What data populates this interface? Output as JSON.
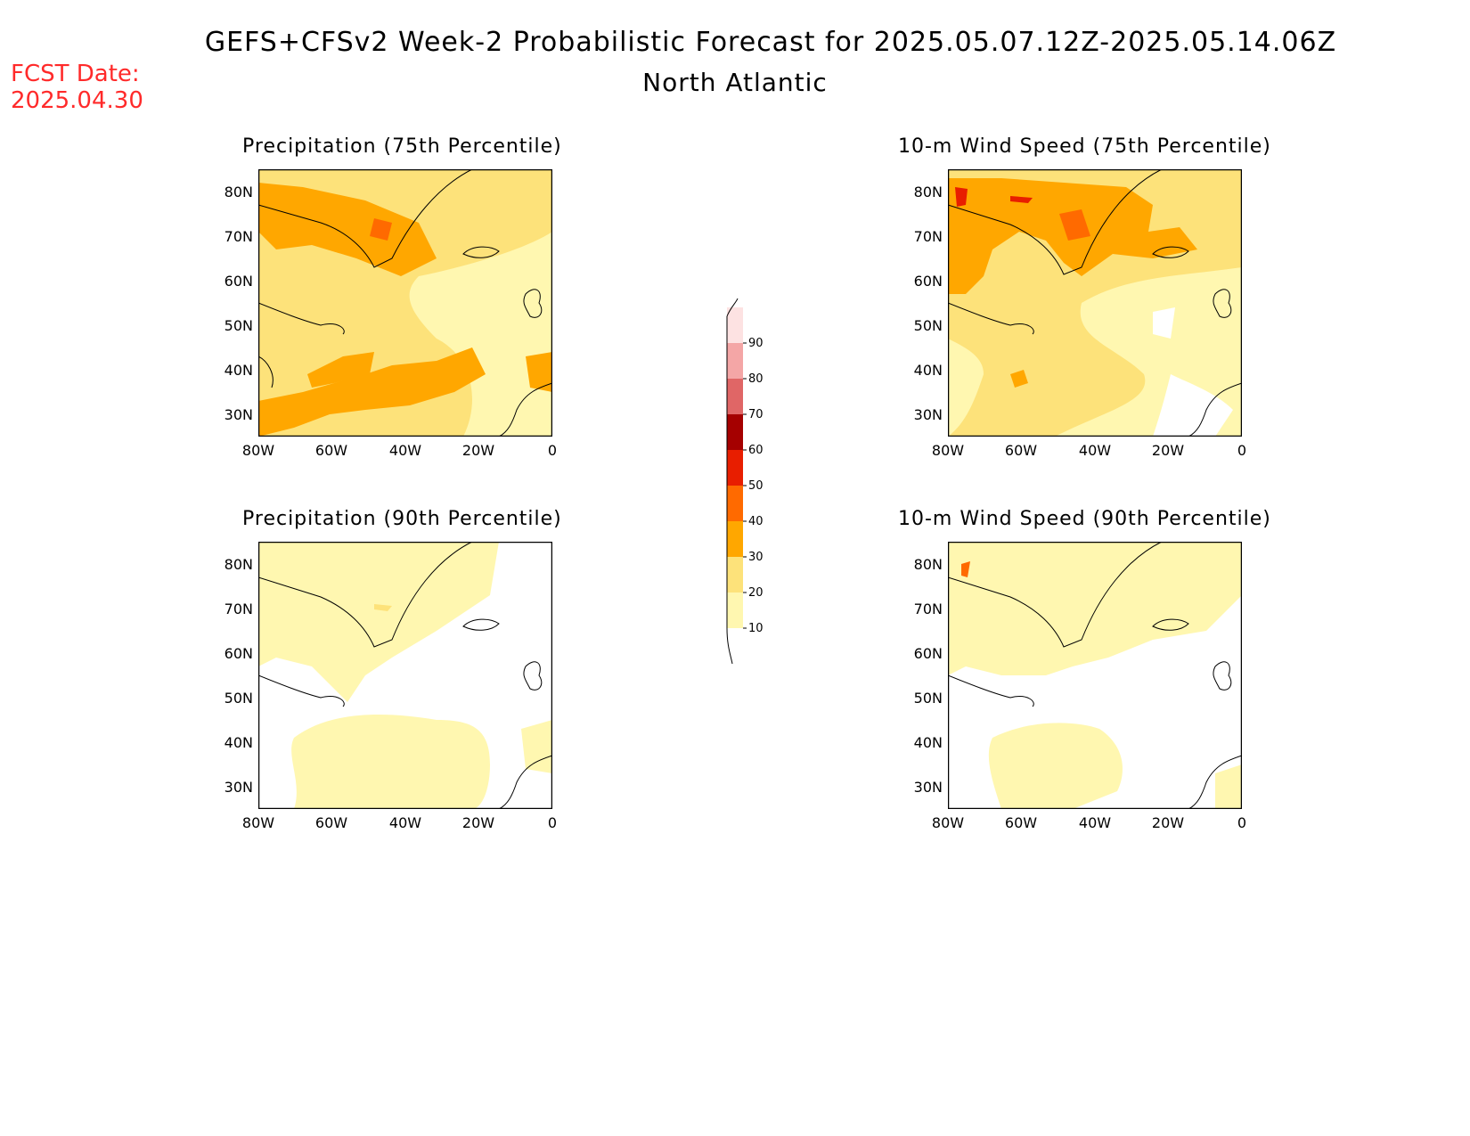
{
  "header": {
    "title": "GEFS+CFSv2 Week-2 Probabilistic Forecast for 2025.05.07.12Z-2025.05.14.06Z",
    "subtitle": "North Atlantic",
    "fcst_label": "FCST Date:",
    "fcst_value": "2025.04.30"
  },
  "panels": [
    {
      "title": "Precipitation (75th Percentile)"
    },
    {
      "title": "10-m Wind Speed (75th Percentile)"
    },
    {
      "title": "Precipitation (90th Percentile)"
    },
    {
      "title": "10-m Wind Speed (90th Percentile)"
    }
  ],
  "axes": {
    "y_ticks": [
      "80N",
      "70N",
      "60N",
      "50N",
      "40N",
      "30N"
    ],
    "x_ticks": [
      "80W",
      "60W",
      "40W",
      "20W",
      "0"
    ]
  },
  "colorbar": {
    "levels": [
      "10",
      "20",
      "30",
      "40",
      "50",
      "60",
      "70",
      "80",
      "90"
    ],
    "colors": [
      "#fff7b0",
      "#fde27a",
      "#ffa700",
      "#ff6a00",
      "#e81e00",
      "#a50000",
      "#e06666",
      "#f4a6a6",
      "#fde2e2"
    ]
  }
}
